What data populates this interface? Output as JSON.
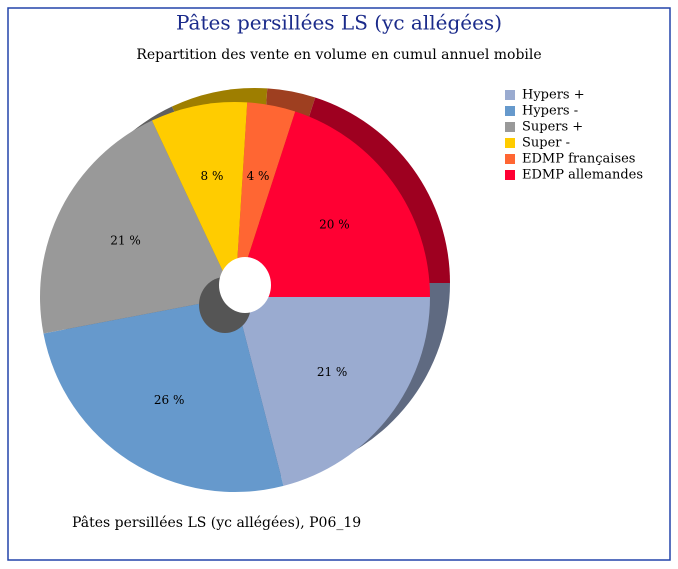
{
  "chart_data": {
    "type": "pie",
    "title": "Pâtes persillées LS (yc allégées)",
    "subtitle": "Repartition des vente en volume en cumul annuel mobile",
    "categories": [
      "Hypers +",
      "Hypers -",
      "Supers +",
      "Super -",
      "EDMP françaises",
      "EDMP allemandes"
    ],
    "values": [
      21,
      26,
      21,
      8,
      4,
      20
    ],
    "value_labels": [
      "21 %",
      "26 %",
      "21 %",
      "8 %",
      "4 %",
      "20 %"
    ],
    "colors": [
      "#9aabd0",
      "#6699cc",
      "#999999",
      "#ffcc00",
      "#ff6633",
      "#ff0033"
    ],
    "legend": "right",
    "footnote": "Pâtes persillées LS (yc allégées), P06_19"
  }
}
